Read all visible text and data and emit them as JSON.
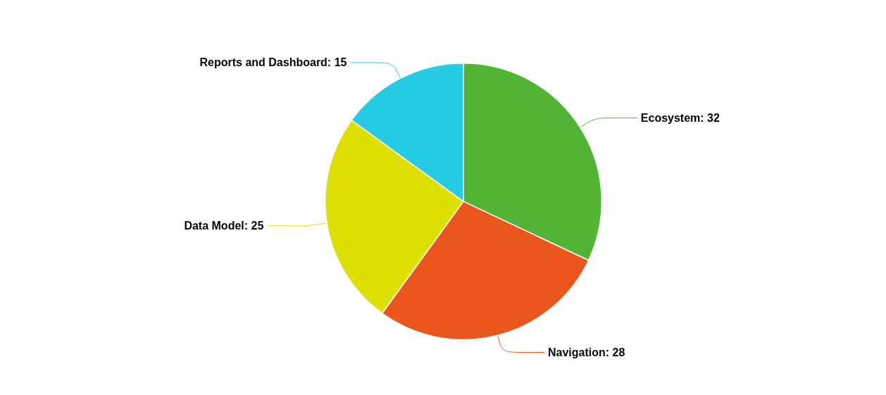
{
  "chart_data": {
    "type": "pie",
    "categories": [
      "Ecosystem",
      "Navigation",
      "Data Model",
      "Reports and Dashboard"
    ],
    "values": [
      32,
      28,
      25,
      15
    ],
    "colors": [
      "#52b335",
      "#eb561c",
      "#dde000",
      "#26cbe4"
    ],
    "value_labels": [
      ": 32",
      ": 28",
      ": 25",
      ": 15"
    ],
    "legend": false
  }
}
